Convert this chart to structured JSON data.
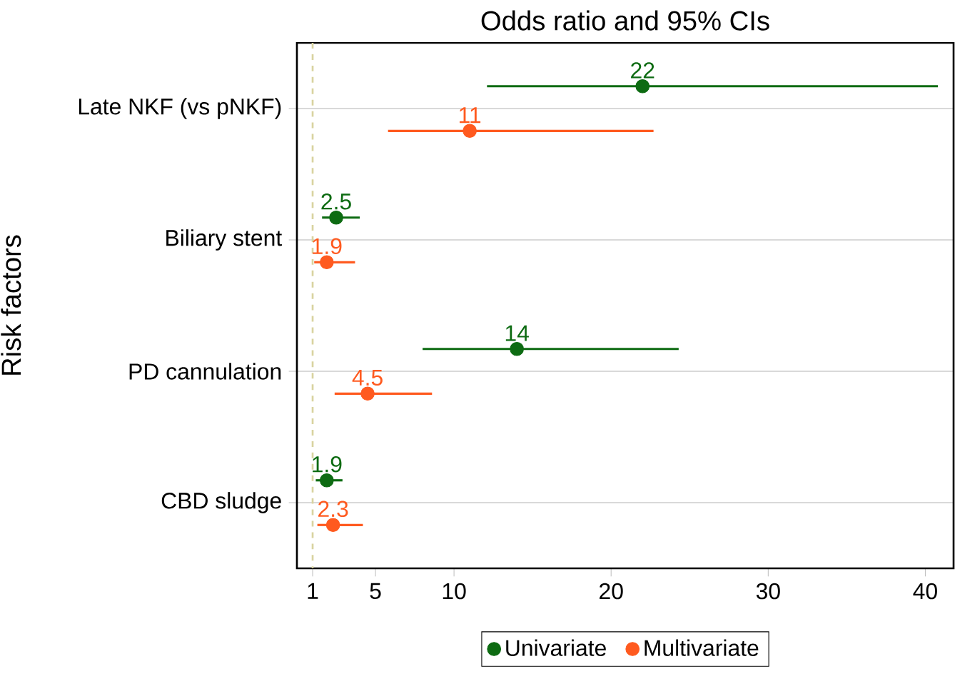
{
  "chart_data": {
    "type": "scatter",
    "orientation": "horizontal",
    "title": "Odds ratio and 95% CIs",
    "ylabel": "Risk factors",
    "categories": [
      "Late NKF (vs pNKF)",
      "Biliary stent",
      "PD cannulation",
      "CBD sludge"
    ],
    "series": [
      {
        "name": "Univariate",
        "color": "#0d6b12",
        "values": [
          22,
          2.5,
          14,
          1.9
        ],
        "value_labels": [
          "22",
          "2.5",
          "14",
          "1.9"
        ],
        "errors": [
          [
            12.1,
            40.8
          ],
          [
            1.6,
            4.0
          ],
          [
            8.0,
            24.3
          ],
          [
            1.2,
            2.9
          ]
        ]
      },
      {
        "name": "Multivariate",
        "color": "#ff5a1f",
        "values": [
          11,
          1.9,
          4.5,
          2.3
        ],
        "value_labels": [
          "11",
          "1.9",
          "4.5",
          "2.3"
        ],
        "errors": [
          [
            5.8,
            22.7
          ],
          [
            1.1,
            3.7
          ],
          [
            2.4,
            8.6
          ],
          [
            1.3,
            4.2
          ]
        ]
      }
    ],
    "xlim": [
      0,
      41.8
    ],
    "xticks": [
      1,
      5,
      10,
      20,
      30,
      40
    ],
    "ref_lines": [
      {
        "axis": "x",
        "value": 1,
        "color": "#d9d3a0",
        "line_style": "dashed"
      }
    ],
    "grid": "y",
    "legend": "bottom"
  }
}
